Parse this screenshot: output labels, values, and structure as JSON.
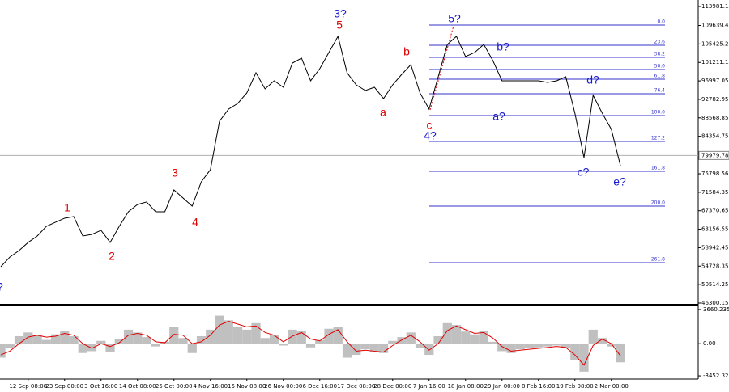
{
  "chart_data": [
    {
      "type": "line",
      "color": "#000000",
      "categories": [
        null,
        null,
        null,
        "12 Sep 08:00",
        null,
        null,
        null,
        "23 Sep 00:00",
        null,
        null,
        null,
        "3 Oct 16:00",
        null,
        null,
        null,
        "14 Oct 08:00",
        null,
        null,
        null,
        "25 Oct 00:00",
        null,
        null,
        null,
        "4 Nov 16:00",
        null,
        null,
        null,
        "15 Nov 08:00",
        null,
        null,
        null,
        "26 Nov 00:00",
        null,
        null,
        null,
        "6 Dec 16:00",
        null,
        null,
        null,
        "17 Dec 08:00",
        null,
        null,
        null,
        "28 Dec 00:00",
        null,
        null,
        null,
        "7 Jan 16:00",
        null,
        null,
        null,
        "18 Jan 08:00",
        null,
        null,
        null,
        "29 Jan 00:00",
        null,
        null,
        null,
        "8 Feb 16:00",
        null,
        null,
        null,
        "19 Feb 08:00",
        null,
        null,
        null,
        "2 Mar 00:00",
        null
      ],
      "values": [
        54600,
        56820,
        58290,
        60140,
        61610,
        63820,
        64750,
        65670,
        66040,
        61610,
        61980,
        62900,
        60140,
        63820,
        67140,
        68800,
        69360,
        67140,
        67140,
        72120,
        70280,
        68430,
        73970,
        76730,
        87800,
        90560,
        91850,
        94250,
        98860,
        95170,
        97020,
        95540,
        101070,
        102180,
        97020,
        99780,
        103470,
        107160,
        98860,
        96090,
        94800,
        95540,
        92960,
        96090,
        98490,
        100700,
        94250,
        90560,
        97940,
        105310,
        107160,
        102550,
        103470,
        105310,
        101630,
        97020,
        97020,
        97020,
        97020,
        97020,
        96650,
        97020,
        97940,
        89640,
        79500,
        93700,
        89640,
        85950,
        77650
      ],
      "ylim": [
        45930,
        115455
      ],
      "yticks": [
        113981.15,
        109639.45,
        105425.25,
        101211.15,
        96997.05,
        92782.95,
        88568.85,
        84354.75,
        75798.56,
        71584.35,
        67370.65,
        63156.55,
        58942.45,
        54728.35,
        50514.25,
        46300.15
      ],
      "current_price": 79979.78,
      "fib_color": "#3333cc",
      "fib_levels": [
        {
          "level": {
            "value": 0,
            "label": "0.0"
          },
          "price": 109740
        },
        {
          "level": 23.6,
          "price": 105130
        },
        {
          "level": 38.2,
          "price": 102360
        },
        {
          "level": {
            "value": 50,
            "label": "50.0"
          },
          "price": 99600
        },
        {
          "level": 61.8,
          "price": 97385
        },
        {
          "level": 76.4,
          "price": 94070
        },
        {
          "level": {
            "value": 100,
            "label": "100.0"
          },
          "price": 89090
        },
        {
          "level": 127.2,
          "price": 83190
        },
        {
          "level": 161.8,
          "price": 76360
        },
        {
          "level": {
            "value": 200,
            "label": "200.0"
          },
          "price": 68430
        },
        {
          "level": 261.8,
          "price": 55530
        }
      ],
      "annotations": [
        {
          "text": "1",
          "color": "#e00000"
        },
        {
          "text": "2",
          "color": "#e00000"
        },
        {
          "text": "3",
          "color": "#e00000"
        },
        {
          "text": "4",
          "color": "#e00000"
        },
        {
          "text": "3?",
          "color": "#1a1acc"
        },
        {
          "text": "5",
          "color": "#e00000"
        },
        {
          "text": "a",
          "color": "#e00000"
        },
        {
          "text": "b",
          "color": "#e00000"
        },
        {
          "text": "c",
          "color": "#e00000"
        },
        {
          "text": "4?",
          "color": "#1a1acc"
        },
        {
          "text": "5?",
          "color": "#1a1acc"
        },
        {
          "text": "b?",
          "color": "#1a1acc"
        },
        {
          "text": "a?",
          "color": "#1a1acc"
        },
        {
          "text": "d?",
          "color": "#1a1acc"
        },
        {
          "text": "c?",
          "color": "#1a1acc"
        },
        {
          "text": "e?",
          "color": "#1a1acc"
        },
        {
          "text": "?",
          "color": "#1a1acc"
        }
      ]
    },
    {
      "type": "macd",
      "color": "#c0c0c0",
      "signal_color": "#e00000",
      "values": [
        -1500,
        -500,
        800,
        1200,
        900,
        400,
        1000,
        1400,
        800,
        -1000,
        -800,
        300,
        -900,
        500,
        1500,
        1200,
        700,
        -300,
        200,
        1800,
        600,
        -1000,
        800,
        1500,
        3000,
        2500,
        1800,
        1500,
        2200,
        600,
        900,
        -200,
        1500,
        1400,
        -400,
        400,
        1600,
        1800,
        -1500,
        -1200,
        -600,
        -900,
        -1000,
        300,
        700,
        1200,
        -500,
        -1200,
        800,
        2200,
        2000,
        1300,
        1000,
        1400,
        200,
        -800,
        -1000,
        -600,
        -500,
        -400,
        -300,
        -200,
        -500,
        -1800,
        -3000,
        1500,
        600,
        -300,
        -2000
      ],
      "signal": [
        -1200,
        -800,
        0,
        700,
        900,
        700,
        800,
        1100,
        900,
        0,
        -500,
        0,
        -300,
        100,
        900,
        1100,
        900,
        200,
        100,
        1000,
        900,
        0,
        200,
        900,
        2000,
        2400,
        2100,
        1800,
        1900,
        1200,
        900,
        200,
        800,
        1200,
        500,
        300,
        1000,
        1500,
        200,
        -800,
        -700,
        -800,
        -900,
        -200,
        400,
        900,
        200,
        -700,
        0,
        1400,
        1900,
        1500,
        1100,
        1200,
        600,
        -300,
        -800,
        -700,
        -600,
        -500,
        -400,
        -300,
        -400,
        -1200,
        -2300,
        -200,
        500,
        0,
        -1300
      ],
      "ylim": [
        -3707,
        3915
      ],
      "yticks": [
        3660.235,
        {
          "value": 0,
          "label": "0.00"
        },
        -3452.32
      ]
    }
  ]
}
